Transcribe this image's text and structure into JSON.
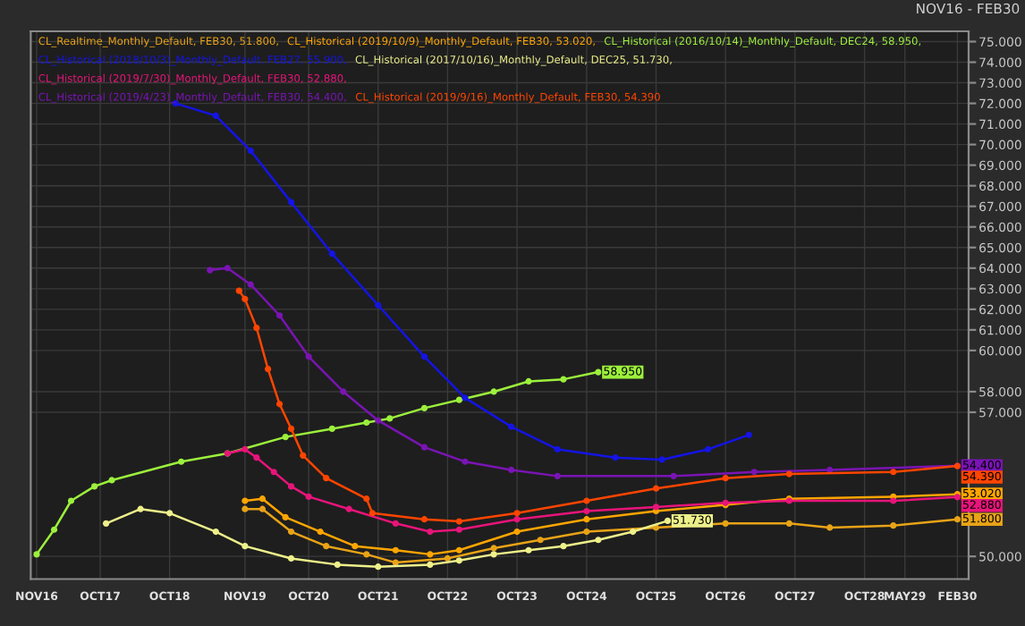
{
  "chart_data": {
    "type": "line",
    "marker": "circle",
    "line_style": "solid",
    "grid": true,
    "legend": "top left",
    "annotations": [
      "NOV16 - FEB30"
    ],
    "xlim": [
      "2016-10",
      "2030-04"
    ],
    "xticks": [
      {
        "value": "2016-11",
        "label": "NOV16"
      },
      {
        "value": "2017-10",
        "label": "OCT17"
      },
      {
        "value": "2018-10",
        "label": "OCT18"
      },
      {
        "value": "2019-11",
        "label": "NOV19"
      },
      {
        "value": "2020-10",
        "label": "OCT20"
      },
      {
        "value": "2021-10",
        "label": "OCT21"
      },
      {
        "value": "2022-10",
        "label": "OCT22"
      },
      {
        "value": "2023-10",
        "label": "OCT23"
      },
      {
        "value": "2024-10",
        "label": "OCT24"
      },
      {
        "value": "2025-10",
        "label": "OCT25"
      },
      {
        "value": "2026-10",
        "label": "OCT26"
      },
      {
        "value": "2027-10",
        "label": "OCT27"
      },
      {
        "value": "2028-10",
        "label": "OCT28"
      },
      {
        "value": "2029-05",
        "label": "MAY29"
      },
      {
        "value": "2030-02",
        "label": "FEB30"
      }
    ],
    "ylim": [
      48.9,
      75.5
    ],
    "yticks": [
      {
        "value": 50,
        "label": "50.000"
      },
      {
        "value": 57,
        "label": "57.000"
      },
      {
        "value": 58,
        "label": "58.000"
      },
      {
        "value": 60,
        "label": "60.000"
      },
      {
        "value": 61,
        "label": "61.000"
      },
      {
        "value": 62,
        "label": "62.000"
      },
      {
        "value": 63,
        "label": "63.000"
      },
      {
        "value": 64,
        "label": "64.000"
      },
      {
        "value": 65,
        "label": "65.000"
      },
      {
        "value": 66,
        "label": "66.000"
      },
      {
        "value": 67,
        "label": "67.000"
      },
      {
        "value": 68,
        "label": "68.000"
      },
      {
        "value": 69,
        "label": "69.000"
      },
      {
        "value": 70,
        "label": "70.000"
      },
      {
        "value": 71,
        "label": "71.000"
      },
      {
        "value": 72,
        "label": "72.000"
      },
      {
        "value": 73,
        "label": "73.000"
      },
      {
        "value": 74,
        "label": "74.000"
      },
      {
        "value": 75,
        "label": "75.000"
      }
    ],
    "series": [
      {
        "name": "CL_Realtime_Monthly_Default, FEB30, 51.800,",
        "color": "#e8a317",
        "x": [
          "2019-11",
          "2020-02",
          "2020-07",
          "2021-01",
          "2021-08",
          "2022-01",
          "2022-10",
          "2023-06",
          "2024-02",
          "2024-10",
          "2025-10",
          "2026-10",
          "2027-09",
          "2028-04",
          "2029-03",
          "2030-02"
        ],
        "values": [
          52.3,
          52.3,
          51.2,
          50.5,
          50.1,
          49.7,
          49.9,
          50.4,
          50.8,
          51.2,
          51.4,
          51.6,
          51.6,
          51.4,
          51.5,
          51.8
        ],
        "value_labels": [
          null,
          null,
          null,
          null,
          null,
          null,
          null,
          null,
          null,
          null,
          null,
          null,
          null,
          null,
          null,
          "51.800"
        ]
      },
      {
        "name": "CL_Historical (2019/10/9)_Monthly_Default, FEB30, 53.020,",
        "color": "#ffa500",
        "x": [
          "2019-11",
          "2020-02",
          "2020-06",
          "2020-12",
          "2021-06",
          "2022-01",
          "2022-07",
          "2022-12",
          "2023-10",
          "2024-10",
          "2025-10",
          "2026-10",
          "2027-09",
          "2029-03",
          "2030-02"
        ],
        "values": [
          52.7,
          52.8,
          51.9,
          51.2,
          50.5,
          50.3,
          50.1,
          50.3,
          51.2,
          51.8,
          52.2,
          52.5,
          52.8,
          52.9,
          53.02
        ],
        "value_labels": [
          null,
          null,
          null,
          null,
          null,
          null,
          null,
          null,
          null,
          null,
          null,
          null,
          null,
          null,
          "53.020"
        ]
      },
      {
        "name": "CL_Historical (2016/10/14)_Monthly_Default, DEC24, 58.950,",
        "color": "#9cf03c",
        "x": [
          "2016-11",
          "2017-02",
          "2017-05",
          "2017-09",
          "2017-12",
          "2018-12",
          "2019-08",
          "2020-06",
          "2021-02",
          "2021-08",
          "2021-12",
          "2022-06",
          "2022-12",
          "2023-06",
          "2023-12",
          "2024-06",
          "2024-12"
        ],
        "values": [
          50.1,
          51.3,
          52.7,
          53.4,
          53.7,
          54.6,
          55.0,
          55.8,
          56.2,
          56.5,
          56.7,
          57.2,
          57.6,
          58.0,
          58.5,
          58.6,
          58.95
        ],
        "value_labels": [
          null,
          null,
          null,
          null,
          null,
          null,
          null,
          null,
          null,
          null,
          null,
          null,
          null,
          null,
          null,
          null,
          "58.950"
        ]
      },
      {
        "name": "CL_Historical (2018/10/3)_Monthly_Default, FEB27, 55.900,",
        "color": "#1414e6",
        "x": [
          "2018-11",
          "2019-06",
          "2019-12",
          "2020-07",
          "2021-02",
          "2021-10",
          "2022-06",
          "2023-01",
          "2023-09",
          "2024-05",
          "2025-03",
          "2025-11",
          "2026-07",
          "2027-02"
        ],
        "values": [
          72.0,
          71.4,
          69.7,
          67.2,
          64.7,
          62.2,
          59.7,
          57.7,
          56.3,
          55.2,
          54.8,
          54.7,
          55.2,
          55.9
        ]
      },
      {
        "name": "CL_Historical (2017/10/16)_Monthly_Default, DEC25, 51.730,",
        "color": "#eef08a",
        "x": [
          "2017-11",
          "2018-05",
          "2018-10",
          "2019-06",
          "2019-11",
          "2020-07",
          "2021-03",
          "2021-10",
          "2022-07",
          "2022-12",
          "2023-06",
          "2023-12",
          "2024-06",
          "2024-12",
          "2025-06",
          "2025-12"
        ],
        "values": [
          51.6,
          52.3,
          52.1,
          51.2,
          50.5,
          49.9,
          49.6,
          49.5,
          49.6,
          49.8,
          50.1,
          50.3,
          50.5,
          50.8,
          51.2,
          51.73
        ],
        "value_labels": [
          null,
          null,
          null,
          null,
          null,
          null,
          null,
          null,
          null,
          null,
          null,
          null,
          null,
          null,
          null,
          "51.730"
        ]
      },
      {
        "name": "CL_Historical (2019/7/30)_Monthly_Default, FEB30, 52.880,",
        "color": "#e8147a",
        "x": [
          "2019-08",
          "2019-11",
          "2020-01",
          "2020-04",
          "2020-07",
          "2020-10",
          "2021-05",
          "2022-01",
          "2022-07",
          "2022-12",
          "2023-10",
          "2024-10",
          "2025-10",
          "2026-10",
          "2027-09",
          "2029-03",
          "2030-02"
        ],
        "values": [
          55.0,
          55.2,
          54.8,
          54.1,
          53.4,
          52.9,
          52.3,
          51.6,
          51.2,
          51.3,
          51.8,
          52.2,
          52.4,
          52.6,
          52.7,
          52.7,
          52.88
        ],
        "value_labels": [
          null,
          null,
          null,
          null,
          null,
          null,
          null,
          null,
          null,
          null,
          null,
          null,
          null,
          null,
          null,
          null,
          "52.880"
        ]
      },
      {
        "name": "CL_Historical (2019/4/23)_Monthly_Default, FEB30, 54.400,",
        "color": "#7a14b4",
        "x": [
          "2019-05",
          "2019-08",
          "2019-12",
          "2020-05",
          "2020-10",
          "2021-04",
          "2021-10",
          "2022-06",
          "2023-01",
          "2023-09",
          "2024-05",
          "2026-01",
          "2027-03",
          "2028-04",
          "2030-02"
        ],
        "values": [
          63.9,
          64.0,
          63.2,
          61.7,
          59.7,
          58.0,
          56.6,
          55.3,
          54.6,
          54.2,
          53.9,
          53.9,
          54.1,
          54.2,
          54.4
        ],
        "value_labels": [
          null,
          null,
          null,
          null,
          null,
          null,
          null,
          null,
          null,
          null,
          null,
          null,
          null,
          null,
          "54.400"
        ]
      },
      {
        "name": "CL_Historical (2019/9/16)_Monthly_Default, FEB30, 54.390",
        "color": "#ff4500",
        "x": [
          "2019-10",
          "2019-11",
          "2020-01",
          "2020-03",
          "2020-05",
          "2020-07",
          "2020-09",
          "2021-01",
          "2021-08",
          "2021-09",
          "2022-06",
          "2022-12",
          "2023-10",
          "2024-10",
          "2025-10",
          "2026-10",
          "2027-09",
          "2029-03",
          "2030-02"
        ],
        "values": [
          62.9,
          62.5,
          61.1,
          59.1,
          57.4,
          56.2,
          54.9,
          53.8,
          52.8,
          52.1,
          51.8,
          51.7,
          52.1,
          52.7,
          53.3,
          53.8,
          54.0,
          54.1,
          54.39
        ],
        "value_labels": [
          null,
          null,
          null,
          null,
          null,
          null,
          null,
          null,
          null,
          null,
          null,
          null,
          null,
          null,
          null,
          null,
          null,
          null,
          "54.390"
        ]
      }
    ]
  }
}
